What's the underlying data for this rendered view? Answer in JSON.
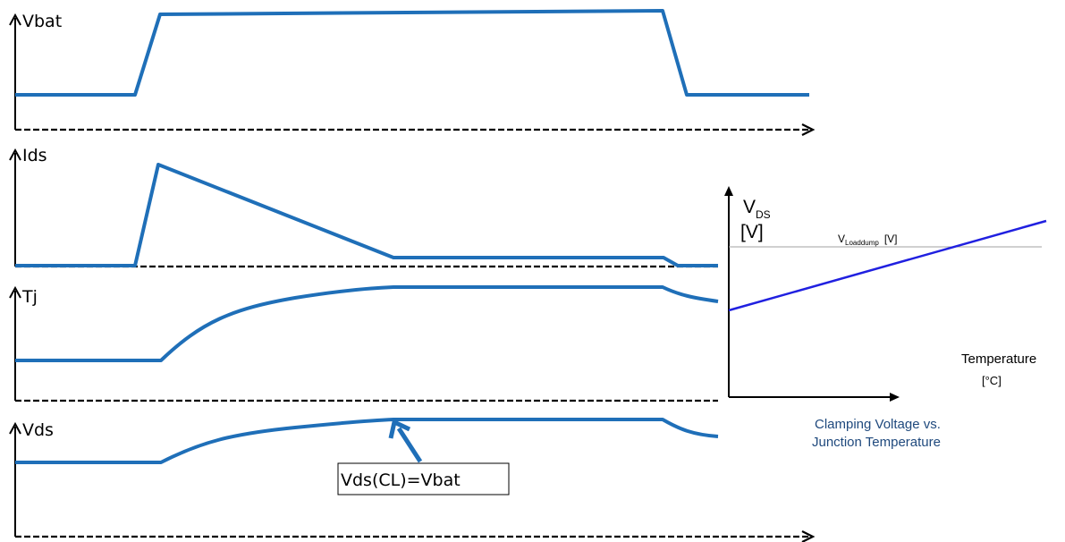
{
  "waveforms": [
    {
      "id": "vbat",
      "label": "Vbat"
    },
    {
      "id": "ids",
      "label": "Ids"
    },
    {
      "id": "tj",
      "label": "Tj"
    },
    {
      "id": "vds",
      "label": "Vds"
    }
  ],
  "annotation": {
    "text": "Vds(CL)=Vbat"
  },
  "clamp_chart": {
    "y_label_main": "V",
    "y_label_sub": "DS",
    "y_unit": "[V]",
    "ref_label_main": "V",
    "ref_label_sub": "Loaddump",
    "ref_label_unit": "[V]",
    "x_label": "Temperature",
    "x_unit": "[°C]",
    "caption_line1": "Clamping Voltage vs.",
    "caption_line2": "Junction Temperature"
  },
  "colors": {
    "waveform": "#1f6fb8",
    "clamp_line": "#2020e0",
    "ref_line": "#a0a0a0",
    "caption": "#1f497d",
    "axis": "#000000"
  }
}
